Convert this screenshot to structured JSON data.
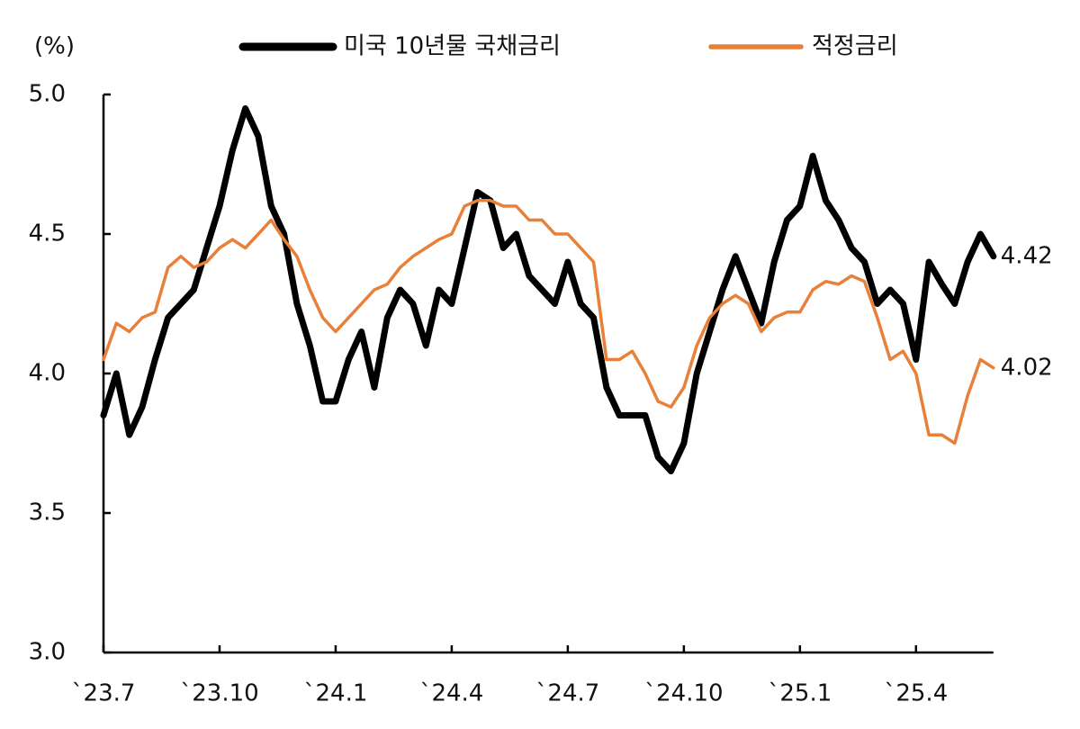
{
  "chart_data": {
    "type": "line",
    "y_label": "(%)",
    "categories": [
      "`23.7",
      null,
      null,
      null,
      null,
      null,
      null,
      null,
      null,
      "`23.10",
      null,
      null,
      null,
      null,
      null,
      null,
      null,
      null,
      "`24.1",
      null,
      null,
      null,
      null,
      null,
      null,
      null,
      null,
      "`24.4",
      null,
      null,
      null,
      null,
      null,
      null,
      null,
      null,
      "`24.7",
      null,
      null,
      null,
      null,
      null,
      null,
      null,
      null,
      "`24.10",
      null,
      null,
      null,
      null,
      null,
      null,
      null,
      null,
      "`25.1",
      null,
      null,
      null,
      null,
      null,
      null,
      null,
      null,
      "`25.4",
      null,
      null,
      null,
      null,
      null,
      null
    ],
    "series": [
      {
        "name": "미국 10년물 국채금리",
        "color": "#000000",
        "values": [
          3.85,
          4.0,
          3.78,
          3.88,
          4.05,
          4.2,
          4.25,
          4.3,
          4.45,
          4.6,
          4.8,
          4.95,
          4.85,
          4.6,
          4.5,
          4.25,
          4.1,
          3.9,
          3.9,
          4.05,
          4.15,
          3.95,
          4.2,
          4.3,
          4.25,
          4.1,
          4.3,
          4.25,
          4.45,
          4.65,
          4.62,
          4.45,
          4.5,
          4.35,
          4.3,
          4.25,
          4.4,
          4.25,
          4.2,
          3.95,
          3.85,
          3.85,
          3.85,
          3.7,
          3.65,
          3.75,
          4.0,
          4.15,
          4.3,
          4.42,
          4.3,
          4.18,
          4.4,
          4.55,
          4.6,
          4.78,
          4.62,
          4.55,
          4.45,
          4.4,
          4.25,
          4.3,
          4.25,
          4.05,
          4.4,
          4.32,
          4.25,
          4.4,
          4.5,
          4.42
        ],
        "value_labels": [
          null,
          null,
          null,
          null,
          null,
          null,
          null,
          null,
          null,
          null,
          null,
          null,
          null,
          null,
          null,
          null,
          null,
          null,
          null,
          null,
          null,
          null,
          null,
          null,
          null,
          null,
          null,
          null,
          null,
          null,
          null,
          null,
          null,
          null,
          null,
          null,
          null,
          null,
          null,
          null,
          null,
          null,
          null,
          null,
          null,
          null,
          null,
          null,
          null,
          null,
          null,
          null,
          null,
          null,
          null,
          null,
          null,
          null,
          null,
          null,
          null,
          null,
          null,
          null,
          null,
          null,
          null,
          null,
          null,
          "4.42"
        ]
      },
      {
        "name": "적정금리",
        "color": "#e8803a",
        "values": [
          4.05,
          4.18,
          4.15,
          4.2,
          4.22,
          4.38,
          4.42,
          4.38,
          4.4,
          4.45,
          4.48,
          4.45,
          4.5,
          4.55,
          4.48,
          4.42,
          4.3,
          4.2,
          4.15,
          4.2,
          4.25,
          4.3,
          4.32,
          4.38,
          4.42,
          4.45,
          4.48,
          4.5,
          4.6,
          4.62,
          4.62,
          4.6,
          4.6,
          4.55,
          4.55,
          4.5,
          4.5,
          4.45,
          4.4,
          4.05,
          4.05,
          4.08,
          4.0,
          3.9,
          3.88,
          3.95,
          4.1,
          4.2,
          4.25,
          4.28,
          4.25,
          4.15,
          4.2,
          4.22,
          4.22,
          4.3,
          4.33,
          4.32,
          4.35,
          4.33,
          4.2,
          4.05,
          4.08,
          4.0,
          3.78,
          3.78,
          3.75,
          3.92,
          4.05,
          4.02
        ],
        "value_labels": [
          null,
          null,
          null,
          null,
          null,
          null,
          null,
          null,
          null,
          null,
          null,
          null,
          null,
          null,
          null,
          null,
          null,
          null,
          null,
          null,
          null,
          null,
          null,
          null,
          null,
          null,
          null,
          null,
          null,
          null,
          null,
          null,
          null,
          null,
          null,
          null,
          null,
          null,
          null,
          null,
          null,
          null,
          null,
          null,
          null,
          null,
          null,
          null,
          null,
          null,
          null,
          null,
          null,
          null,
          null,
          null,
          null,
          null,
          null,
          null,
          null,
          null,
          null,
          null,
          null,
          null,
          null,
          null,
          null,
          "4.02"
        ]
      }
    ],
    "ylim": [
      3.0,
      5.0
    ],
    "yticks": [
      {
        "value": 3.0,
        "label": "3.0"
      },
      3.5,
      {
        "value": 4.0,
        "label": "4.0"
      },
      4.5,
      {
        "value": 5.0,
        "label": "5.0"
      }
    ],
    "grid": false,
    "legend": "top"
  }
}
